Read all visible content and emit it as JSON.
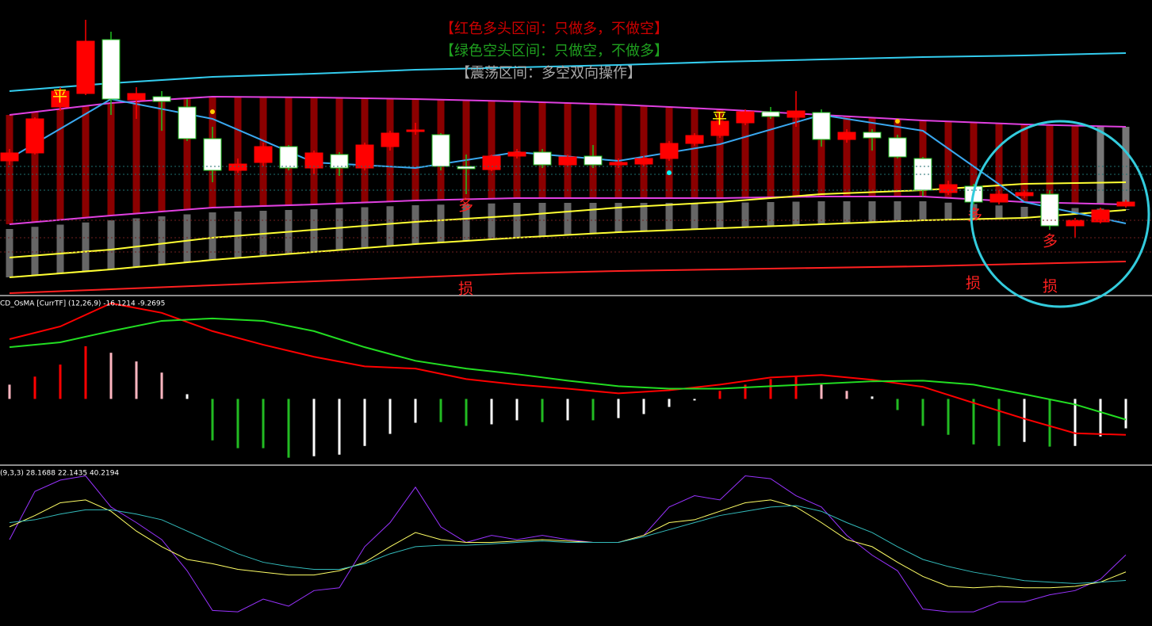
{
  "header": {
    "lines": [
      "【红色多头区间：只做多，不做空】",
      "【绿色空头区间：只做空，不做多】",
      "【震荡区间：多空双向操作】"
    ]
  },
  "markers": [
    {
      "label": "平"
    },
    {
      "label": "平"
    },
    {
      "label": "多"
    },
    {
      "label": "多"
    },
    {
      "label": "多"
    },
    {
      "label": "损"
    },
    {
      "label": "损"
    },
    {
      "label": "损"
    }
  ],
  "chart_data": [
    {
      "type": "candlestick",
      "ylim": [
        0,
        372
      ],
      "up_color": "#ff0000",
      "down_color": "#ffffff",
      "open": [
        169,
        179,
        237,
        254,
        322,
        246,
        250,
        237,
        197,
        157,
        167,
        187,
        160,
        177,
        160,
        187,
        206,
        202,
        162,
        158,
        175,
        180,
        164,
        175,
        164,
        165,
        172,
        191,
        201,
        217,
        231,
        224,
        230,
        196,
        205,
        198,
        172,
        129,
        137,
        117,
        125,
        127,
        87,
        92,
        112
      ],
      "high": [
        184,
        224,
        262,
        347,
        332,
        262,
        257,
        247,
        212,
        172,
        192,
        189,
        182,
        180,
        192,
        207,
        217,
        204,
        177,
        177,
        184,
        184,
        177,
        189,
        172,
        175,
        194,
        204,
        224,
        234,
        237,
        257,
        234,
        209,
        209,
        202,
        174,
        144,
        140,
        132,
        132,
        132,
        97,
        110,
        120
      ],
      "low": [
        164,
        177,
        232,
        252,
        227,
        222,
        207,
        194,
        142,
        154,
        162,
        157,
        152,
        150,
        157,
        182,
        202,
        157,
        127,
        156,
        172,
        160,
        162,
        160,
        160,
        162,
        169,
        188,
        198,
        214,
        222,
        212,
        187,
        192,
        182,
        172,
        124,
        126,
        114,
        114,
        122,
        82,
        72,
        90,
        110
      ],
      "close": [
        179,
        222,
        257,
        320,
        247,
        254,
        244,
        197,
        157,
        165,
        187,
        160,
        179,
        160,
        189,
        204,
        208,
        162,
        159,
        175,
        180,
        164,
        174,
        164,
        167,
        172,
        191,
        201,
        219,
        231,
        225,
        232,
        196,
        205,
        198,
        174,
        132,
        139,
        117,
        127,
        129,
        87,
        94,
        107,
        117
      ],
      "lines": [
        {
          "color": "#33ccee",
          "x": [
            0,
            4,
            8,
            12,
            16,
            20,
            24,
            28,
            32,
            36,
            40,
            44
          ],
          "values": [
            257,
            267,
            275,
            279,
            284,
            287,
            290,
            294,
            297,
            300,
            302,
            305
          ]
        },
        {
          "color": "#e040e0",
          "x": [
            0,
            4,
            8,
            12,
            16,
            20,
            24,
            28,
            32,
            36,
            40,
            44
          ],
          "values": [
            227,
            242,
            250,
            249,
            247,
            244,
            240,
            234,
            227,
            220,
            215,
            212
          ]
        },
        {
          "color": "#e040e0",
          "x": [
            0,
            4,
            8,
            12,
            16,
            20,
            24,
            28,
            32,
            36,
            40,
            44
          ],
          "values": [
            89,
            100,
            110,
            114,
            119,
            122,
            122,
            122,
            124,
            124,
            117,
            114
          ]
        },
        {
          "color": "#ffff33",
          "x": [
            0,
            4,
            8,
            12,
            16,
            20,
            24,
            28,
            32,
            36,
            40,
            44
          ],
          "values": [
            47,
            57,
            72,
            82,
            92,
            100,
            110,
            117,
            127,
            132,
            140,
            142
          ]
        },
        {
          "color": "#ffff33",
          "x": [
            0,
            4,
            8,
            12,
            16,
            20,
            24,
            28,
            32,
            36,
            40,
            44
          ],
          "values": [
            22,
            32,
            44,
            54,
            64,
            72,
            79,
            84,
            89,
            94,
            97,
            107
          ]
        },
        {
          "color": "#ff2020",
          "x": [
            0,
            4,
            8,
            12,
            16,
            20,
            24,
            28,
            32,
            36,
            40,
            44
          ],
          "values": [
            2,
            7,
            12,
            17,
            22,
            27,
            30,
            32,
            34,
            36,
            39,
            42
          ]
        },
        {
          "color": "#3aa8f0",
          "x": [
            0,
            4,
            8,
            12,
            16,
            20,
            24,
            28,
            32,
            36,
            40,
            44
          ],
          "values": [
            172,
            247,
            222,
            167,
            160,
            180,
            169,
            190,
            227,
            207,
            117,
            90
          ]
        }
      ]
    },
    {
      "type": "macd",
      "title": "CD_OsMA [CurrTF] (12,26,9) -16.1214 -9.2695",
      "ylim": [
        -29,
        46
      ],
      "values": [
        6.4,
        10,
        15.4,
        23.6,
        20.7,
        16.8,
        11.8,
        2.1,
        -18.6,
        -22.1,
        -22.1,
        -26.4,
        -25.7,
        -25,
        -21.1,
        -15.7,
        -10.7,
        -10.4,
        -12.1,
        -11.4,
        -9.6,
        -10.4,
        -9.6,
        -9.6,
        -8.6,
        -6.8,
        -3.6,
        -0.7,
        3.6,
        6.4,
        8.9,
        10,
        6.4,
        3.6,
        1.1,
        -5,
        -12.1,
        -16.1,
        -20.4,
        -21.1,
        -19.3,
        -21.4,
        -21.1,
        -16.8,
        -13.2
      ],
      "bar_colors": [
        "#ffb6c1",
        "#ff0000",
        "#ff0000",
        "#ff0000",
        "#ffb6c1",
        "#ffb6c1",
        "#ffb6c1",
        "#ffffff",
        "#22bb22",
        "#22bb22",
        "#22bb22",
        "#22bb22",
        "#ffffff",
        "#ffffff",
        "#ffffff",
        "#ffffff",
        "#ffffff",
        "#22bb22",
        "#22bb22",
        "#ffffff",
        "#ffffff",
        "#22bb22",
        "#ffffff",
        "#22bb22",
        "#ffffff",
        "#ffffff",
        "#ffffff",
        "#ffffff",
        "#ff0000",
        "#ff0000",
        "#ff0000",
        "#ff0000",
        "#ffb6c1",
        "#ffb6c1",
        "#ffffff",
        "#22bb22",
        "#22bb22",
        "#22bb22",
        "#22bb22",
        "#22bb22",
        "#ffffff",
        "#22bb22",
        "#ffffff",
        "#ffffff",
        "#ffffff"
      ],
      "series": [
        {
          "color": "#ff0000",
          "x": [
            0,
            2,
            4,
            6,
            8,
            10,
            12,
            14,
            16,
            18,
            20,
            22,
            24,
            26,
            28,
            30,
            32,
            34,
            36,
            38,
            40,
            42,
            44
          ],
          "values": [
            26.8,
            32.5,
            42.9,
            38.6,
            30.4,
            24.3,
            18.9,
            14.6,
            13.6,
            8.9,
            6.4,
            4.6,
            2.5,
            3.9,
            6.4,
            9.6,
            10.7,
            8.6,
            5.4,
            -1.8,
            -8.9,
            -15.4,
            -16.1214
          ]
        },
        {
          "color": "#22dd22",
          "x": [
            0,
            2,
            4,
            6,
            8,
            10,
            12,
            14,
            16,
            18,
            20,
            22,
            24,
            26,
            28,
            30,
            32,
            34,
            36,
            38,
            40,
            42,
            44
          ],
          "values": [
            23.2,
            25.4,
            30.4,
            35,
            36.1,
            35,
            30.4,
            23.2,
            17.1,
            13.6,
            11.1,
            8.2,
            5.7,
            4.6,
            4.6,
            5.7,
            6.8,
            7.9,
            8.2,
            6.4,
            2.1,
            -2.5,
            -9.2695
          ]
        }
      ]
    },
    {
      "type": "line",
      "title": "(9,3,3) 28.1688 22.1435 40.2194",
      "ylim": [
        -10,
        103
      ],
      "x": [
        0,
        1,
        2,
        3,
        4,
        5,
        6,
        7,
        8,
        9,
        10,
        11,
        12,
        13,
        14,
        15,
        16,
        17,
        18,
        19,
        20,
        21,
        22,
        23,
        24,
        25,
        26,
        27,
        28,
        29,
        30,
        31,
        32,
        33,
        34,
        35,
        36,
        37,
        38,
        39,
        40,
        41,
        42,
        43,
        44
      ],
      "series": [
        {
          "color": "#9933ff",
          "values": [
            51,
            85,
            93,
            96,
            74,
            63,
            51,
            29,
            1,
            0,
            9,
            4,
            15,
            17,
            46,
            63,
            88,
            60,
            49,
            54,
            51,
            54,
            51,
            49,
            49,
            54,
            74,
            82,
            79,
            96,
            94,
            82,
            74,
            54,
            40,
            29,
            2,
            0,
            0,
            7,
            7,
            12,
            15,
            23,
            40.2194
          ]
        },
        {
          "color": "#ffff66",
          "values": [
            60,
            68,
            77,
            79,
            71,
            57,
            46,
            37,
            34,
            30,
            28,
            26,
            26,
            29,
            35,
            46,
            56,
            51,
            49,
            49,
            50,
            51,
            50,
            49,
            49,
            54,
            63,
            65,
            71,
            77,
            79,
            74,
            63,
            51,
            46,
            35,
            25,
            18,
            17,
            18,
            17,
            17,
            18,
            21,
            28.1688
          ]
        },
        {
          "color": "#33bbbb",
          "values": [
            63,
            65,
            69,
            72,
            72,
            69,
            65,
            57,
            49,
            41,
            35,
            32,
            30,
            30,
            34,
            41,
            46,
            47,
            47,
            48,
            49,
            50,
            49,
            49,
            49,
            53,
            58,
            63,
            68,
            71,
            74,
            75,
            71,
            63,
            56,
            46,
            37,
            32,
            28,
            25,
            22,
            21,
            20,
            21,
            22.1435
          ]
        }
      ]
    }
  ]
}
